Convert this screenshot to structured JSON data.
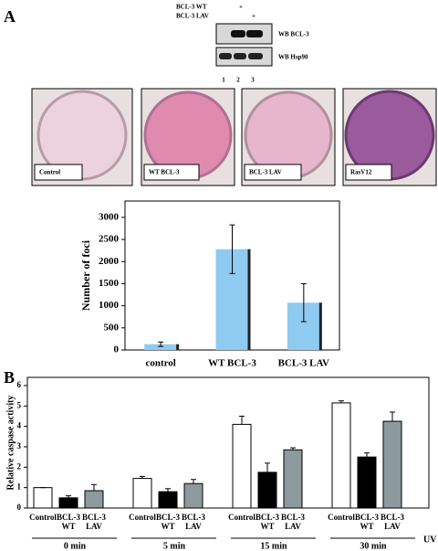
{
  "panel_labels": [
    "A",
    "B"
  ],
  "western_blot": {
    "rows": [
      {
        "label": "BCL-3 WT",
        "mark": "+"
      },
      {
        "label": "BCL-3 LAV",
        "mark": "+"
      }
    ],
    "blots": [
      "WB BCL-3",
      "WB Hsp90"
    ],
    "lanes": [
      "1",
      "2",
      "3"
    ]
  },
  "plates": [
    "Control",
    "WT BCL-3",
    "BCL-3 LAV",
    "RasV12"
  ],
  "chart_data": [
    {
      "type": "bar",
      "y_label": "Number of foci",
      "categories": [
        "control",
        "WT BCL-3",
        "BCL-3 LAV"
      ],
      "values": [
        130,
        2280,
        1070
      ],
      "errors": [
        50,
        550,
        430
      ],
      "color": "#8fcbf0",
      "ylim": [
        0,
        3370
      ],
      "yticks": [
        0,
        500,
        1000,
        1500,
        2000,
        2500,
        3000
      ]
    },
    {
      "type": "grouped_bar",
      "y_label": "Relative caspase activity",
      "x_label": "UV",
      "categories": [
        "0 min",
        "5 min",
        "15 min",
        "30 min"
      ],
      "series": [
        {
          "name": "Control",
          "color": "#ffffff",
          "values": [
            1.0,
            1.45,
            4.1,
            5.15
          ],
          "errors": [
            0,
            0.1,
            0.4,
            0.1
          ]
        },
        {
          "name": "BCL-3 WT",
          "color": "#000000",
          "values": [
            0.5,
            0.8,
            1.75,
            2.5
          ],
          "errors": [
            0.1,
            0.15,
            0.45,
            0.2
          ]
        },
        {
          "name": "BCL-3 LAV",
          "color": "#8c9a9e",
          "values": [
            0.85,
            1.2,
            2.85,
            4.25
          ],
          "errors": [
            0.3,
            0.2,
            0.1,
            0.45
          ]
        }
      ],
      "ylim": [
        0,
        6.4
      ],
      "yticks": [
        0,
        1,
        2,
        3,
        4,
        5,
        6
      ]
    }
  ]
}
